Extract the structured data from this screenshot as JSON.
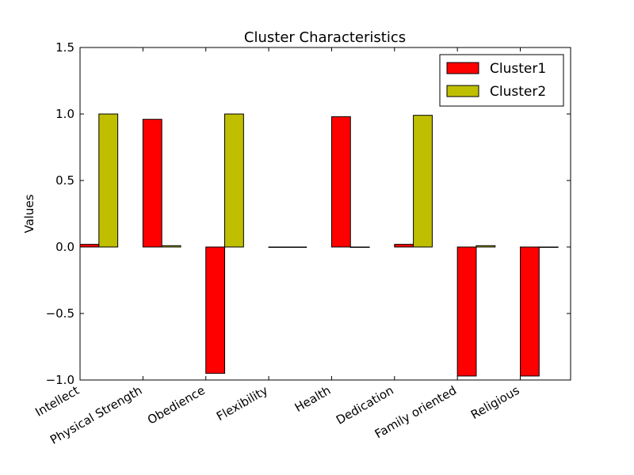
{
  "chart_data": {
    "type": "bar",
    "title": "Cluster Characteristics",
    "xlabel": "",
    "ylabel": "Values",
    "ylim": [
      -1.0,
      1.5
    ],
    "yticks": [
      -1.0,
      -0.5,
      0.0,
      0.5,
      1.0,
      1.5
    ],
    "ytick_labels": [
      "−1.0",
      "−0.5",
      "0.0",
      "0.5",
      "1.0",
      "1.5"
    ],
    "categories": [
      "Intellect",
      "Physical Strength",
      "Obedience",
      "Flexibility",
      "Health",
      "Dedication",
      "Family oriented",
      "Religious"
    ],
    "series": [
      {
        "name": "Cluster1",
        "color": "#ff0000",
        "values": [
          0.02,
          0.96,
          -0.95,
          0.0,
          0.98,
          0.02,
          -0.97,
          -0.97
        ]
      },
      {
        "name": "Cluster2",
        "color": "#bfbf00",
        "values": [
          1.0,
          0.01,
          1.0,
          0.0,
          0.0,
          0.99,
          0.01,
          0.0
        ]
      }
    ],
    "legend_position": "top-right",
    "grid": false
  }
}
